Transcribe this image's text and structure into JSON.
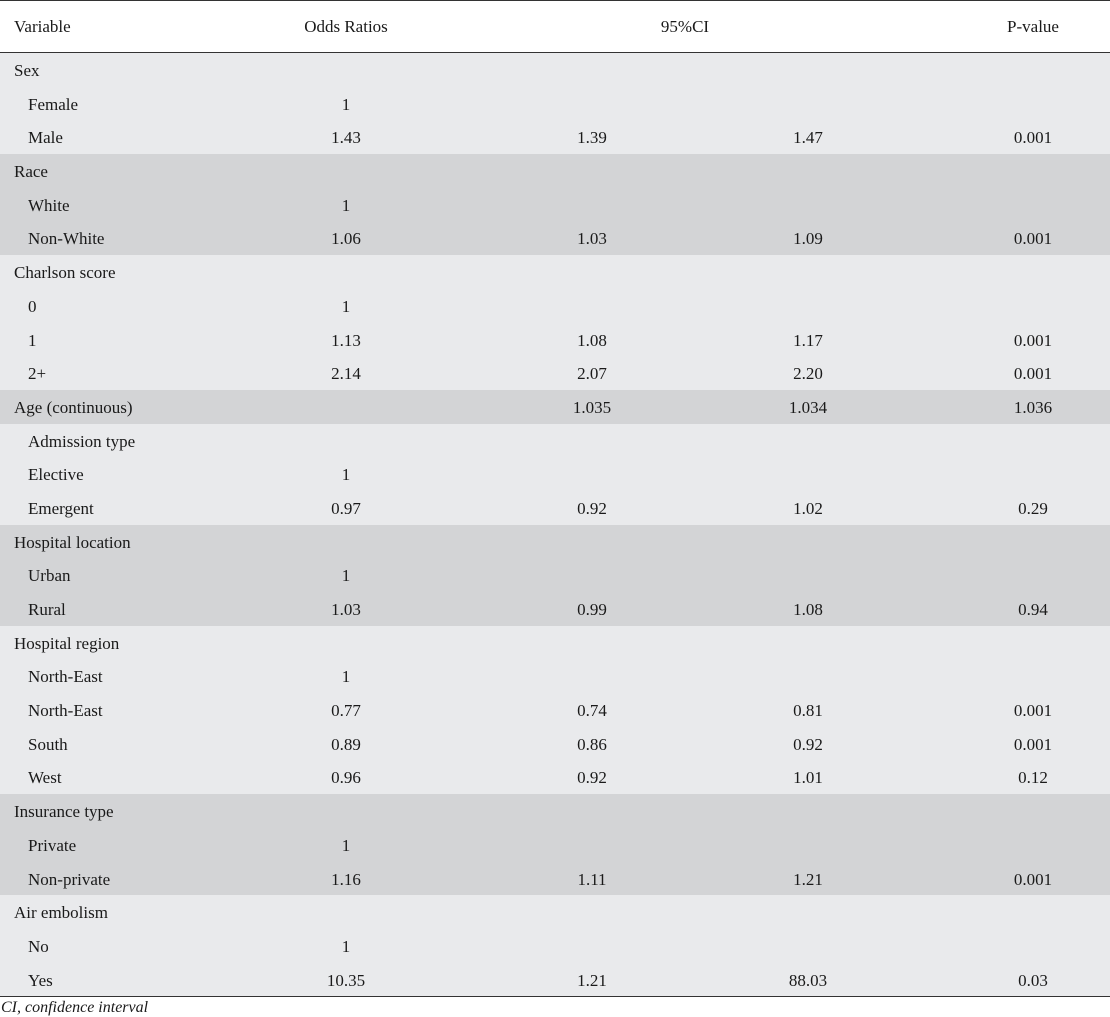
{
  "table": {
    "headers": {
      "variable": "Variable",
      "odds_ratios": "Odds Ratios",
      "ci": "95%CI",
      "p_value": "P-value"
    },
    "rows": [
      {
        "label": "Sex",
        "or": "",
        "lo": "",
        "hi": "",
        "p": "",
        "indent": false,
        "shade": "light"
      },
      {
        "label": "Female",
        "or": "1",
        "lo": "",
        "hi": "",
        "p": "",
        "indent": true,
        "shade": "light"
      },
      {
        "label": "Male",
        "or": "1.43",
        "lo": "1.39",
        "hi": "1.47",
        "p": "0.001",
        "indent": true,
        "shade": "light"
      },
      {
        "label": "Race",
        "or": "",
        "lo": "",
        "hi": "",
        "p": "",
        "indent": false,
        "shade": "dark"
      },
      {
        "label": "White",
        "or": "1",
        "lo": "",
        "hi": "",
        "p": "",
        "indent": true,
        "shade": "dark"
      },
      {
        "label": "Non-White",
        "or": "1.06",
        "lo": "1.03",
        "hi": "1.09",
        "p": "0.001",
        "indent": true,
        "shade": "dark"
      },
      {
        "label": "Charlson score",
        "or": "",
        "lo": "",
        "hi": "",
        "p": "",
        "indent": false,
        "shade": "light"
      },
      {
        "label": "0",
        "or": "1",
        "lo": "",
        "hi": "",
        "p": "",
        "indent": true,
        "shade": "light"
      },
      {
        "label": "1",
        "or": "1.13",
        "lo": "1.08",
        "hi": "1.17",
        "p": "0.001",
        "indent": true,
        "shade": "light"
      },
      {
        "label": "2+",
        "or": "2.14",
        "lo": "2.07",
        "hi": "2.20",
        "p": "0.001",
        "indent": true,
        "shade": "light"
      },
      {
        "label": "Age (continuous)",
        "or": "",
        "lo": "1.035",
        "hi": "1.034",
        "p": "1.036",
        "indent": false,
        "shade": "dark"
      },
      {
        "label": "Admission type",
        "or": "",
        "lo": "",
        "hi": "",
        "p": "",
        "indent": true,
        "shade": "light"
      },
      {
        "label": "Elective",
        "or": "1",
        "lo": "",
        "hi": "",
        "p": "",
        "indent": true,
        "shade": "light"
      },
      {
        "label": "Emergent",
        "or": "0.97",
        "lo": "0.92",
        "hi": "1.02",
        "p": "0.29",
        "indent": true,
        "shade": "light"
      },
      {
        "label": "Hospital location",
        "or": "",
        "lo": "",
        "hi": "",
        "p": "",
        "indent": false,
        "shade": "dark"
      },
      {
        "label": "Urban",
        "or": "1",
        "lo": "",
        "hi": "",
        "p": "",
        "indent": true,
        "shade": "dark"
      },
      {
        "label": "Rural",
        "or": "1.03",
        "lo": "0.99",
        "hi": "1.08",
        "p": "0.94",
        "indent": true,
        "shade": "dark"
      },
      {
        "label": "Hospital region",
        "or": "",
        "lo": "",
        "hi": "",
        "p": "",
        "indent": false,
        "shade": "light"
      },
      {
        "label": "North-East",
        "or": "1",
        "lo": "",
        "hi": "",
        "p": "",
        "indent": true,
        "shade": "light"
      },
      {
        "label": "North-East",
        "or": "0.77",
        "lo": "0.74",
        "hi": "0.81",
        "p": "0.001",
        "indent": true,
        "shade": "light"
      },
      {
        "label": "South",
        "or": "0.89",
        "lo": "0.86",
        "hi": "0.92",
        "p": "0.001",
        "indent": true,
        "shade": "light"
      },
      {
        "label": "West",
        "or": "0.96",
        "lo": "0.92",
        "hi": "1.01",
        "p": "0.12",
        "indent": true,
        "shade": "light"
      },
      {
        "label": "Insurance type",
        "or": "",
        "lo": "",
        "hi": "",
        "p": "",
        "indent": false,
        "shade": "dark"
      },
      {
        "label": "Private",
        "or": "1",
        "lo": "",
        "hi": "",
        "p": "",
        "indent": true,
        "shade": "dark"
      },
      {
        "label": "Non-private",
        "or": "1.16",
        "lo": "1.11",
        "hi": "1.21",
        "p": "0.001",
        "indent": true,
        "shade": "dark"
      },
      {
        "label": "Air embolism",
        "or": "",
        "lo": "",
        "hi": "",
        "p": "",
        "indent": false,
        "shade": "light"
      },
      {
        "label": "No",
        "or": "1",
        "lo": "",
        "hi": "",
        "p": "",
        "indent": true,
        "shade": "light"
      },
      {
        "label": "Yes",
        "or": "10.35",
        "lo": "1.21",
        "hi": "88.03",
        "p": "0.03",
        "indent": true,
        "shade": "light"
      }
    ],
    "footnote": "CI, confidence interval"
  },
  "colors": {
    "light_band": "#e9eaec",
    "dark_band": "#d3d4d6",
    "rule": "#333333"
  }
}
